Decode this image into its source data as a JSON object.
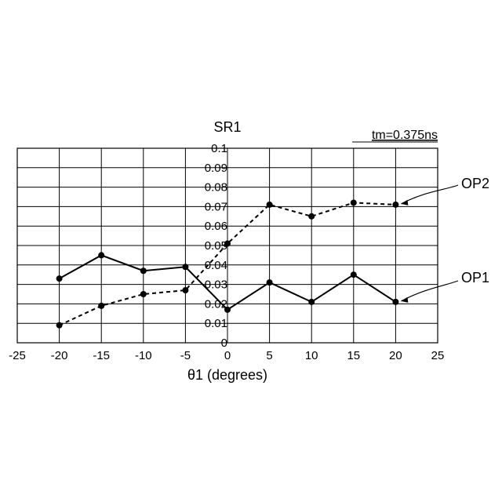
{
  "chart_data": {
    "type": "line",
    "ylabel": "SR1",
    "xlabel": "θ1 (degrees)",
    "annotation": "tm=0.375ns",
    "xlim": [
      -25,
      25
    ],
    "ylim": [
      0,
      0.1
    ],
    "xticks": [
      "-25",
      "-20",
      "-15",
      "-10",
      "-5",
      "0",
      "5",
      "10",
      "15",
      "20",
      "25"
    ],
    "yticks": [
      "0",
      "0.01",
      "0.02",
      "0.03",
      "0.04",
      "0.05",
      "0.06",
      "0.07",
      "0.08",
      "0.09",
      "0.1"
    ],
    "grid": true,
    "x": [
      -20,
      -15,
      -10,
      -5,
      0,
      5,
      10,
      15,
      20
    ],
    "series": [
      {
        "name": "OP1",
        "style": "solid",
        "values": [
          0.033,
          0.045,
          0.037,
          0.039,
          0.017,
          0.031,
          0.021,
          0.035,
          0.021
        ]
      },
      {
        "name": "OP2",
        "style": "dashed",
        "values": [
          0.009,
          0.019,
          0.025,
          0.027,
          0.051,
          0.071,
          0.065,
          0.072,
          0.071
        ]
      }
    ],
    "colors": {
      "line": "#000000",
      "grid": "#000000",
      "background": "#ffffff"
    }
  }
}
